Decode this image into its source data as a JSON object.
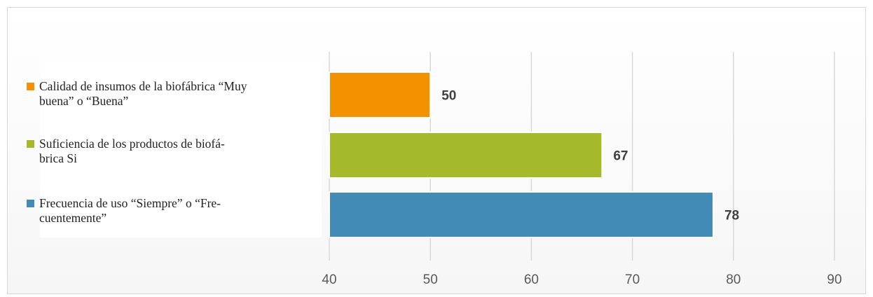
{
  "chart_data": {
    "type": "bar",
    "orientation": "horizontal",
    "categories": [
      "Calidad de insumos de la biofábrica “Muy buena” o “Buena”",
      "Suficiencia de los productos de biofá-brica Si",
      "Frecuencia de uso “Siempre” o “Fre-cuentemente”"
    ],
    "values": [
      50,
      67,
      78
    ],
    "data_labels": [
      "50",
      "67",
      "78"
    ],
    "colors": [
      "#f39200",
      "#a5b92a",
      "#428bb6"
    ],
    "xlim": [
      40,
      90
    ],
    "xticks": [
      40,
      50,
      60,
      70,
      80,
      90
    ],
    "xtick_labels": [
      "40",
      "50",
      "60",
      "70",
      "80",
      "90"
    ],
    "grid": "vertical",
    "legend": "left"
  },
  "legend": {
    "items": [
      {
        "line1": "Calidad de insumos de la biofábrica “Muy",
        "line2": "buena” o “Buena”"
      },
      {
        "line1": "Suficiencia de los productos de biofá-",
        "line2": "brica Si"
      },
      {
        "line1": "Frecuencia de uso “Siempre” o “Fre-",
        "line2": "cuentemente”"
      }
    ]
  }
}
